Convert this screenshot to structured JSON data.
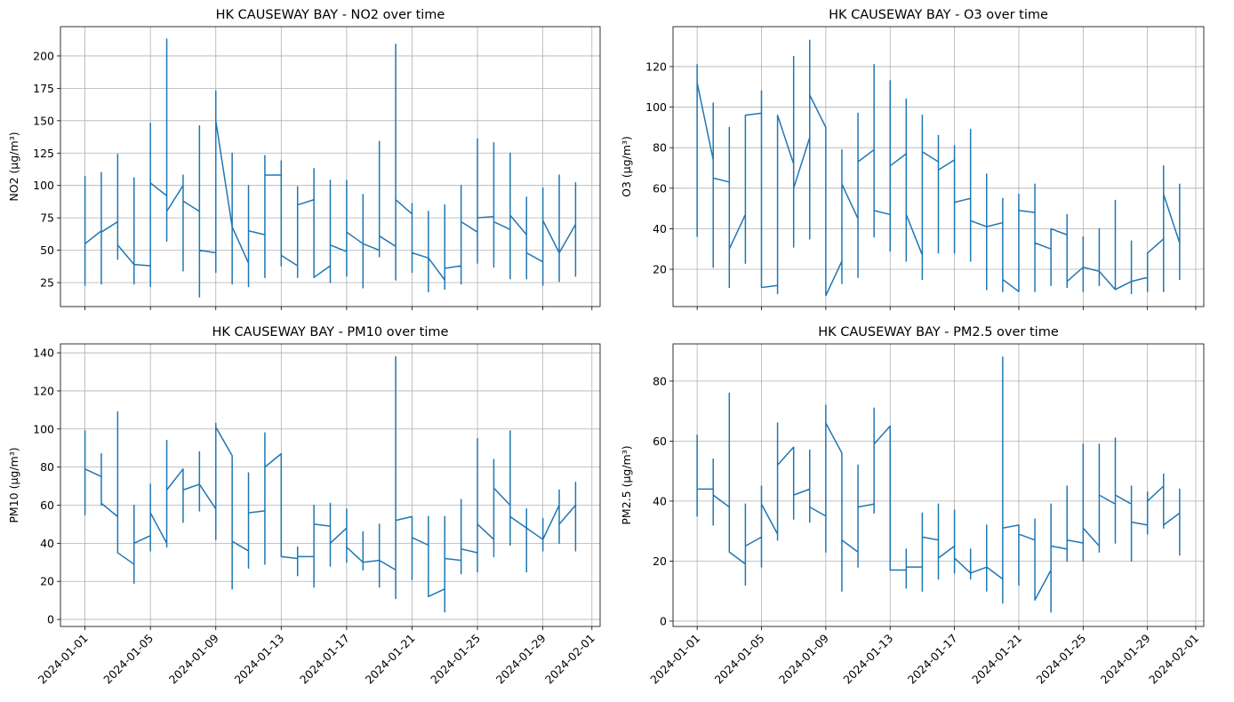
{
  "chart_data": [
    {
      "type": "line",
      "title": "HK CAUSEWAY BAY - NO2 over time",
      "ylabel": "NO2 (μg/m³)",
      "color": "#1f77b4",
      "grid": true,
      "x": [
        "2024-01-01",
        "2024-01-01",
        "2024-01-01",
        "2024-01-01",
        "2024-01-02",
        "2024-01-02",
        "2024-01-02",
        "2024-01-02",
        "2024-01-03",
        "2024-01-03",
        "2024-01-03",
        "2024-01-03",
        "2024-01-04",
        "2024-01-04",
        "2024-01-04",
        "2024-01-04",
        "2024-01-05",
        "2024-01-05",
        "2024-01-05",
        "2024-01-05",
        "2024-01-06",
        "2024-01-06",
        "2024-01-06",
        "2024-01-06",
        "2024-01-07",
        "2024-01-07",
        "2024-01-07",
        "2024-01-07",
        "2024-01-08",
        "2024-01-08",
        "2024-01-08",
        "2024-01-08",
        "2024-01-09",
        "2024-01-09",
        "2024-01-09",
        "2024-01-09",
        "2024-01-10",
        "2024-01-10",
        "2024-01-10",
        "2024-01-10",
        "2024-01-11",
        "2024-01-11",
        "2024-01-11",
        "2024-01-11",
        "2024-01-12",
        "2024-01-12",
        "2024-01-12",
        "2024-01-12",
        "2024-01-13",
        "2024-01-13",
        "2024-01-13",
        "2024-01-13",
        "2024-01-14",
        "2024-01-14",
        "2024-01-14",
        "2024-01-14",
        "2024-01-15",
        "2024-01-15",
        "2024-01-15",
        "2024-01-15",
        "2024-01-16",
        "2024-01-16",
        "2024-01-16",
        "2024-01-16",
        "2024-01-17",
        "2024-01-17",
        "2024-01-17",
        "2024-01-17",
        "2024-01-18",
        "2024-01-18",
        "2024-01-18",
        "2024-01-18",
        "2024-01-19",
        "2024-01-19",
        "2024-01-19",
        "2024-01-19",
        "2024-01-20",
        "2024-01-20",
        "2024-01-20",
        "2024-01-20",
        "2024-01-21",
        "2024-01-21",
        "2024-01-21",
        "2024-01-21",
        "2024-01-22",
        "2024-01-22",
        "2024-01-22",
        "2024-01-22",
        "2024-01-23",
        "2024-01-23",
        "2024-01-23",
        "2024-01-23",
        "2024-01-24",
        "2024-01-24",
        "2024-01-24",
        "2024-01-24",
        "2024-01-25",
        "2024-01-25",
        "2024-01-25",
        "2024-01-25",
        "2024-01-26",
        "2024-01-26",
        "2024-01-26",
        "2024-01-26",
        "2024-01-27",
        "2024-01-27",
        "2024-01-27",
        "2024-01-27",
        "2024-01-28",
        "2024-01-28",
        "2024-01-28",
        "2024-01-28",
        "2024-01-29",
        "2024-01-29",
        "2024-01-29",
        "2024-01-29",
        "2024-01-30",
        "2024-01-30",
        "2024-01-30",
        "2024-01-30",
        "2024-01-31",
        "2024-01-31",
        "2024-01-31",
        "2024-01-31"
      ],
      "values": [
        55,
        23,
        107,
        55,
        65,
        24,
        110,
        64,
        72,
        43,
        124,
        54,
        39,
        24,
        106,
        39,
        38,
        22,
        148,
        102,
        92,
        57,
        213,
        80,
        100,
        34,
        108,
        88,
        80,
        14,
        146,
        50,
        48,
        33,
        173,
        150,
        68,
        24,
        125,
        68,
        40,
        22,
        100,
        65,
        62,
        29,
        123,
        108,
        108,
        38,
        119,
        46,
        38,
        29,
        99,
        85,
        89,
        29,
        113,
        29,
        38,
        25,
        104,
        54,
        49,
        30,
        104,
        64,
        55,
        21,
        93,
        55,
        50,
        45,
        134,
        61,
        53,
        27,
        209,
        89,
        78,
        33,
        86,
        48,
        44,
        18,
        80,
        44,
        27,
        20,
        85,
        36,
        38,
        24,
        100,
        72,
        64,
        40,
        136,
        75,
        76,
        37,
        133,
        72,
        66,
        28,
        125,
        77,
        62,
        28,
        91,
        48,
        41,
        23,
        98,
        73,
        48,
        26,
        108,
        48,
        70,
        30,
        102,
        69
      ],
      "xlim": [
        "2023-12-30T12:00",
        "2024-02-01T12:00"
      ],
      "xticks": [
        "2024-01-01",
        "2024-01-05",
        "2024-01-09",
        "2024-01-13",
        "2024-01-17",
        "2024-01-21",
        "2024-01-25",
        "2024-01-29",
        "2024-02-01"
      ],
      "ylim": [
        6.5,
        222.6
      ],
      "yticks": [
        25,
        50,
        75,
        100,
        125,
        150,
        175,
        200
      ]
    },
    {
      "type": "line",
      "title": "HK CAUSEWAY BAY - O3 over time",
      "ylabel": "O3 (μg/m³)",
      "color": "#1f77b4",
      "grid": true,
      "x": [
        "2024-01-01",
        "2024-01-01",
        "2024-01-01",
        "2024-01-01",
        "2024-01-02",
        "2024-01-02",
        "2024-01-02",
        "2024-01-02",
        "2024-01-03",
        "2024-01-03",
        "2024-01-03",
        "2024-01-03",
        "2024-01-04",
        "2024-01-04",
        "2024-01-04",
        "2024-01-04",
        "2024-01-05",
        "2024-01-05",
        "2024-01-05",
        "2024-01-05",
        "2024-01-06",
        "2024-01-06",
        "2024-01-06",
        "2024-01-06",
        "2024-01-07",
        "2024-01-07",
        "2024-01-07",
        "2024-01-07",
        "2024-01-08",
        "2024-01-08",
        "2024-01-08",
        "2024-01-08",
        "2024-01-09",
        "2024-01-09",
        "2024-01-09",
        "2024-01-09",
        "2024-01-10",
        "2024-01-10",
        "2024-01-10",
        "2024-01-10",
        "2024-01-11",
        "2024-01-11",
        "2024-01-11",
        "2024-01-11",
        "2024-01-12",
        "2024-01-12",
        "2024-01-12",
        "2024-01-12",
        "2024-01-13",
        "2024-01-13",
        "2024-01-13",
        "2024-01-13",
        "2024-01-14",
        "2024-01-14",
        "2024-01-14",
        "2024-01-14",
        "2024-01-15",
        "2024-01-15",
        "2024-01-15",
        "2024-01-15",
        "2024-01-16",
        "2024-01-16",
        "2024-01-16",
        "2024-01-16",
        "2024-01-17",
        "2024-01-17",
        "2024-01-17",
        "2024-01-17",
        "2024-01-18",
        "2024-01-18",
        "2024-01-18",
        "2024-01-18",
        "2024-01-19",
        "2024-01-19",
        "2024-01-19",
        "2024-01-19",
        "2024-01-20",
        "2024-01-20",
        "2024-01-20",
        "2024-01-20",
        "2024-01-21",
        "2024-01-21",
        "2024-01-21",
        "2024-01-21",
        "2024-01-22",
        "2024-01-22",
        "2024-01-22",
        "2024-01-22",
        "2024-01-23",
        "2024-01-23",
        "2024-01-23",
        "2024-01-23",
        "2024-01-24",
        "2024-01-24",
        "2024-01-24",
        "2024-01-24",
        "2024-01-25",
        "2024-01-25",
        "2024-01-25",
        "2024-01-25",
        "2024-01-26",
        "2024-01-26",
        "2024-01-26",
        "2024-01-26",
        "2024-01-27",
        "2024-01-27",
        "2024-01-27",
        "2024-01-27",
        "2024-01-28",
        "2024-01-28",
        "2024-01-28",
        "2024-01-28",
        "2024-01-29",
        "2024-01-29",
        "2024-01-29",
        "2024-01-29",
        "2024-01-30",
        "2024-01-30",
        "2024-01-30",
        "2024-01-30",
        "2024-01-31",
        "2024-01-31",
        "2024-01-31",
        "2024-01-31"
      ],
      "values": [
        36,
        36,
        121,
        112,
        74,
        21,
        102,
        65,
        63,
        11,
        90,
        30,
        47,
        23,
        96,
        96,
        97,
        11,
        108,
        11,
        12,
        8,
        96,
        96,
        72,
        31,
        125,
        60,
        85,
        35,
        133,
        106,
        90,
        7,
        90,
        7,
        24,
        13,
        79,
        62,
        45,
        16,
        97,
        73,
        79,
        36,
        121,
        49,
        47,
        29,
        113,
        71,
        77,
        24,
        104,
        47,
        27,
        15,
        96,
        78,
        73,
        28,
        86,
        69,
        74,
        28,
        81,
        53,
        55,
        24,
        89,
        44,
        41,
        10,
        67,
        41,
        43,
        9,
        55,
        15,
        9,
        9,
        57,
        49,
        48,
        9,
        62,
        33,
        30,
        12,
        40,
        40,
        37,
        11,
        47,
        14,
        21,
        9,
        36,
        21,
        19,
        12,
        40,
        19,
        10,
        10,
        54,
        10,
        14,
        8,
        34,
        14,
        16,
        9,
        28,
        28,
        35,
        9,
        71,
        57,
        33,
        15,
        62,
        33
      ],
      "xlim": [
        "2023-12-30T12:00",
        "2024-02-01T12:00"
      ],
      "xticks": [
        "2024-01-01",
        "2024-01-05",
        "2024-01-09",
        "2024-01-13",
        "2024-01-17",
        "2024-01-21",
        "2024-01-25",
        "2024-01-29",
        "2024-02-01"
      ],
      "ylim": [
        1.6,
        139.7
      ],
      "yticks": [
        20,
        40,
        60,
        80,
        100,
        120
      ]
    },
    {
      "type": "line",
      "title": "HK CAUSEWAY BAY - PM10 over time",
      "ylabel": "PM10 (μg/m³)",
      "color": "#1f77b4",
      "grid": true,
      "x": [
        "2024-01-01",
        "2024-01-01",
        "2024-01-01",
        "2024-01-01",
        "2024-01-02",
        "2024-01-02",
        "2024-01-02",
        "2024-01-02",
        "2024-01-03",
        "2024-01-03",
        "2024-01-03",
        "2024-01-03",
        "2024-01-04",
        "2024-01-04",
        "2024-01-04",
        "2024-01-04",
        "2024-01-05",
        "2024-01-05",
        "2024-01-05",
        "2024-01-05",
        "2024-01-06",
        "2024-01-06",
        "2024-01-06",
        "2024-01-06",
        "2024-01-07",
        "2024-01-07",
        "2024-01-07",
        "2024-01-07",
        "2024-01-08",
        "2024-01-08",
        "2024-01-08",
        "2024-01-08",
        "2024-01-09",
        "2024-01-09",
        "2024-01-09",
        "2024-01-09",
        "2024-01-10",
        "2024-01-10",
        "2024-01-10",
        "2024-01-10",
        "2024-01-11",
        "2024-01-11",
        "2024-01-11",
        "2024-01-11",
        "2024-01-12",
        "2024-01-12",
        "2024-01-12",
        "2024-01-12",
        "2024-01-13",
        "2024-01-13",
        "2024-01-13",
        "2024-01-13",
        "2024-01-14",
        "2024-01-14",
        "2024-01-14",
        "2024-01-14",
        "2024-01-15",
        "2024-01-15",
        "2024-01-15",
        "2024-01-15",
        "2024-01-16",
        "2024-01-16",
        "2024-01-16",
        "2024-01-16",
        "2024-01-17",
        "2024-01-17",
        "2024-01-17",
        "2024-01-17",
        "2024-01-18",
        "2024-01-18",
        "2024-01-18",
        "2024-01-18",
        "2024-01-19",
        "2024-01-19",
        "2024-01-19",
        "2024-01-19",
        "2024-01-20",
        "2024-01-20",
        "2024-01-20",
        "2024-01-20",
        "2024-01-21",
        "2024-01-21",
        "2024-01-21",
        "2024-01-21",
        "2024-01-22",
        "2024-01-22",
        "2024-01-22",
        "2024-01-22",
        "2024-01-23",
        "2024-01-23",
        "2024-01-23",
        "2024-01-23",
        "2024-01-24",
        "2024-01-24",
        "2024-01-24",
        "2024-01-24",
        "2024-01-25",
        "2024-01-25",
        "2024-01-25",
        "2024-01-25",
        "2024-01-26",
        "2024-01-26",
        "2024-01-26",
        "2024-01-26",
        "2024-01-27",
        "2024-01-27",
        "2024-01-27",
        "2024-01-27",
        "2024-01-28",
        "2024-01-28",
        "2024-01-28",
        "2024-01-28",
        "2024-01-29",
        "2024-01-29",
        "2024-01-29",
        "2024-01-29",
        "2024-01-30",
        "2024-01-30",
        "2024-01-30",
        "2024-01-30",
        "2024-01-31",
        "2024-01-31",
        "2024-01-31",
        "2024-01-31"
      ],
      "values": [
        79,
        55,
        99,
        79,
        75,
        60,
        87,
        61,
        54,
        35,
        109,
        35,
        29,
        19,
        60,
        40,
        44,
        36,
        71,
        56,
        40,
        38,
        94,
        68,
        79,
        51,
        79,
        68,
        71,
        57,
        88,
        71,
        58,
        42,
        103,
        101,
        86,
        16,
        86,
        41,
        36,
        27,
        77,
        56,
        57,
        29,
        98,
        80,
        87,
        33,
        87,
        33,
        32,
        23,
        38,
        33,
        33,
        17,
        60,
        50,
        49,
        28,
        61,
        40,
        48,
        30,
        58,
        38,
        30,
        26,
        46,
        30,
        31,
        17,
        50,
        31,
        26,
        11,
        138,
        52,
        54,
        21,
        54,
        43,
        39,
        16,
        54,
        12,
        16,
        4,
        54,
        32,
        31,
        24,
        63,
        37,
        35,
        25,
        95,
        50,
        42,
        33,
        84,
        69,
        60,
        39,
        99,
        54,
        48,
        25,
        58,
        48,
        42,
        36,
        53,
        42,
        60,
        40,
        68,
        50,
        60,
        36,
        72,
        59
      ],
      "xlim": [
        "2023-12-30T12:00",
        "2024-02-01T12:00"
      ],
      "xticks": [
        "2024-01-01",
        "2024-01-05",
        "2024-01-09",
        "2024-01-13",
        "2024-01-17",
        "2024-01-21",
        "2024-01-25",
        "2024-01-29",
        "2024-02-01"
      ],
      "ylim": [
        -3.7,
        144.7
      ],
      "yticks": [
        0,
        20,
        40,
        60,
        80,
        100,
        120,
        140
      ]
    },
    {
      "type": "line",
      "title": "HK CAUSEWAY BAY - PM2.5 over time",
      "ylabel": "PM2.5 (μg/m³)",
      "color": "#1f77b4",
      "grid": true,
      "x": [
        "2024-01-01",
        "2024-01-01",
        "2024-01-01",
        "2024-01-01",
        "2024-01-02",
        "2024-01-02",
        "2024-01-02",
        "2024-01-02",
        "2024-01-03",
        "2024-01-03",
        "2024-01-03",
        "2024-01-03",
        "2024-01-04",
        "2024-01-04",
        "2024-01-04",
        "2024-01-04",
        "2024-01-05",
        "2024-01-05",
        "2024-01-05",
        "2024-01-05",
        "2024-01-06",
        "2024-01-06",
        "2024-01-06",
        "2024-01-06",
        "2024-01-07",
        "2024-01-07",
        "2024-01-07",
        "2024-01-07",
        "2024-01-08",
        "2024-01-08",
        "2024-01-08",
        "2024-01-08",
        "2024-01-09",
        "2024-01-09",
        "2024-01-09",
        "2024-01-09",
        "2024-01-10",
        "2024-01-10",
        "2024-01-10",
        "2024-01-10",
        "2024-01-11",
        "2024-01-11",
        "2024-01-11",
        "2024-01-11",
        "2024-01-12",
        "2024-01-12",
        "2024-01-12",
        "2024-01-12",
        "2024-01-13",
        "2024-01-13",
        "2024-01-13",
        "2024-01-13",
        "2024-01-14",
        "2024-01-14",
        "2024-01-14",
        "2024-01-14",
        "2024-01-15",
        "2024-01-15",
        "2024-01-15",
        "2024-01-15",
        "2024-01-16",
        "2024-01-16",
        "2024-01-16",
        "2024-01-16",
        "2024-01-17",
        "2024-01-17",
        "2024-01-17",
        "2024-01-17",
        "2024-01-18",
        "2024-01-18",
        "2024-01-18",
        "2024-01-18",
        "2024-01-19",
        "2024-01-19",
        "2024-01-19",
        "2024-01-19",
        "2024-01-20",
        "2024-01-20",
        "2024-01-20",
        "2024-01-20",
        "2024-01-21",
        "2024-01-21",
        "2024-01-21",
        "2024-01-21",
        "2024-01-22",
        "2024-01-22",
        "2024-01-22",
        "2024-01-22",
        "2024-01-23",
        "2024-01-23",
        "2024-01-23",
        "2024-01-23",
        "2024-01-24",
        "2024-01-24",
        "2024-01-24",
        "2024-01-24",
        "2024-01-25",
        "2024-01-25",
        "2024-01-25",
        "2024-01-25",
        "2024-01-26",
        "2024-01-26",
        "2024-01-26",
        "2024-01-26",
        "2024-01-27",
        "2024-01-27",
        "2024-01-27",
        "2024-01-27",
        "2024-01-28",
        "2024-01-28",
        "2024-01-28",
        "2024-01-28",
        "2024-01-29",
        "2024-01-29",
        "2024-01-29",
        "2024-01-29",
        "2024-01-30",
        "2024-01-30",
        "2024-01-30",
        "2024-01-30",
        "2024-01-31",
        "2024-01-31",
        "2024-01-31",
        "2024-01-31"
      ],
      "values": [
        44,
        35,
        62,
        44,
        44,
        32,
        54,
        42,
        38,
        23,
        76,
        23,
        19,
        12,
        39,
        25,
        28,
        18,
        45,
        39,
        29,
        27,
        66,
        52,
        58,
        34,
        58,
        42,
        44,
        33,
        57,
        38,
        35,
        23,
        72,
        66,
        56,
        10,
        56,
        27,
        23,
        18,
        52,
        38,
        39,
        36,
        71,
        59,
        65,
        17,
        65,
        17,
        17,
        11,
        24,
        18,
        18,
        10,
        36,
        28,
        27,
        14,
        39,
        21,
        25,
        16,
        37,
        21,
        16,
        14,
        24,
        16,
        18,
        10,
        32,
        18,
        14,
        6,
        88,
        31,
        32,
        12,
        32,
        29,
        27,
        7,
        34,
        7,
        17,
        3,
        39,
        25,
        24,
        20,
        45,
        27,
        26,
        20,
        59,
        31,
        25,
        23,
        59,
        42,
        39,
        26,
        61,
        42,
        39,
        20,
        45,
        33,
        32,
        29,
        43,
        40,
        45,
        31,
        49,
        32,
        36,
        22,
        44,
        36
      ],
      "xlim": [
        "2023-12-30T12:00",
        "2024-02-01T12:00"
      ],
      "xticks": [
        "2024-01-01",
        "2024-01-05",
        "2024-01-09",
        "2024-01-13",
        "2024-01-17",
        "2024-01-21",
        "2024-01-25",
        "2024-01-29",
        "2024-02-01"
      ],
      "ylim": [
        -1.8,
        92.4
      ],
      "yticks": [
        0,
        20,
        40,
        60,
        80
      ]
    }
  ]
}
